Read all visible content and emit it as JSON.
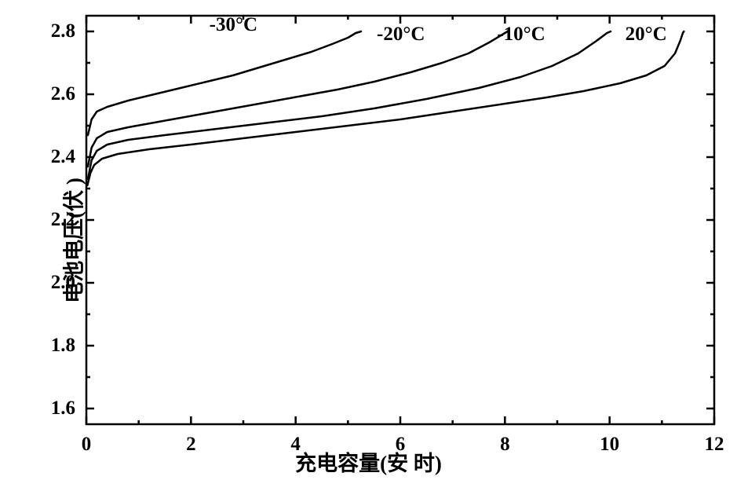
{
  "chart": {
    "type": "line",
    "xlabel": "充电容量(安 时)",
    "ylabel": "电池电压(伏 )",
    "label_fontsize": 27,
    "tick_fontsize": 25,
    "background_color": "#ffffff",
    "axis_color": "#000000",
    "line_color": "#000000",
    "line_width": 2.5,
    "axis_line_width": 2.5,
    "tick_length_major": 10,
    "tick_length_minor": 5,
    "xlim": [
      0,
      12
    ],
    "ylim": [
      1.55,
      2.85
    ],
    "xticks_major": [
      0,
      2,
      4,
      6,
      8,
      10,
      12
    ],
    "yticks_major": [
      1.6,
      1.8,
      2.0,
      2.2,
      2.4,
      2.6,
      2.8
    ],
    "xticks_minor": [
      1,
      3,
      5,
      7,
      9,
      11
    ],
    "yticks_minor": [
      1.7,
      1.9,
      2.1,
      2.3,
      2.5,
      2.7
    ],
    "series": [
      {
        "label": "-30°C",
        "label_x": 2.35,
        "label_y": 2.82,
        "points": [
          [
            0.03,
            2.47
          ],
          [
            0.1,
            2.52
          ],
          [
            0.2,
            2.545
          ],
          [
            0.4,
            2.56
          ],
          [
            0.8,
            2.58
          ],
          [
            1.3,
            2.6
          ],
          [
            1.8,
            2.62
          ],
          [
            2.3,
            2.64
          ],
          [
            2.8,
            2.66
          ],
          [
            3.3,
            2.685
          ],
          [
            3.8,
            2.71
          ],
          [
            4.3,
            2.735
          ],
          [
            4.7,
            2.76
          ],
          [
            5.0,
            2.78
          ],
          [
            5.15,
            2.795
          ],
          [
            5.25,
            2.8
          ]
        ]
      },
      {
        "label": "-20°C",
        "label_x": 5.55,
        "label_y": 2.79,
        "points": [
          [
            0.03,
            2.37
          ],
          [
            0.1,
            2.43
          ],
          [
            0.2,
            2.46
          ],
          [
            0.4,
            2.48
          ],
          [
            0.8,
            2.495
          ],
          [
            1.3,
            2.51
          ],
          [
            1.8,
            2.525
          ],
          [
            2.8,
            2.555
          ],
          [
            3.8,
            2.585
          ],
          [
            4.8,
            2.615
          ],
          [
            5.5,
            2.64
          ],
          [
            6.2,
            2.67
          ],
          [
            6.8,
            2.7
          ],
          [
            7.3,
            2.73
          ],
          [
            7.7,
            2.765
          ],
          [
            7.95,
            2.79
          ],
          [
            8.05,
            2.8
          ]
        ]
      },
      {
        "label": "-10°C",
        "label_x": 7.85,
        "label_y": 2.79,
        "points": [
          [
            0.03,
            2.33
          ],
          [
            0.1,
            2.39
          ],
          [
            0.2,
            2.42
          ],
          [
            0.4,
            2.44
          ],
          [
            0.8,
            2.455
          ],
          [
            1.5,
            2.47
          ],
          [
            2.5,
            2.49
          ],
          [
            3.5,
            2.51
          ],
          [
            4.5,
            2.53
          ],
          [
            5.5,
            2.555
          ],
          [
            6.5,
            2.585
          ],
          [
            7.5,
            2.62
          ],
          [
            8.3,
            2.655
          ],
          [
            8.9,
            2.69
          ],
          [
            9.4,
            2.73
          ],
          [
            9.75,
            2.77
          ],
          [
            9.95,
            2.795
          ],
          [
            10.02,
            2.8
          ]
        ]
      },
      {
        "label": "20°C",
        "label_x": 10.3,
        "label_y": 2.79,
        "points": [
          [
            0.02,
            2.31
          ],
          [
            0.08,
            2.35
          ],
          [
            0.15,
            2.375
          ],
          [
            0.3,
            2.395
          ],
          [
            0.6,
            2.41
          ],
          [
            1.2,
            2.425
          ],
          [
            2.0,
            2.44
          ],
          [
            3.0,
            2.46
          ],
          [
            4.0,
            2.48
          ],
          [
            5.0,
            2.5
          ],
          [
            6.0,
            2.52
          ],
          [
            7.0,
            2.545
          ],
          [
            8.0,
            2.57
          ],
          [
            8.8,
            2.59
          ],
          [
            9.5,
            2.61
          ],
          [
            10.2,
            2.635
          ],
          [
            10.7,
            2.66
          ],
          [
            11.05,
            2.69
          ],
          [
            11.25,
            2.73
          ],
          [
            11.35,
            2.77
          ],
          [
            11.4,
            2.795
          ],
          [
            11.42,
            2.8
          ]
        ]
      }
    ]
  }
}
